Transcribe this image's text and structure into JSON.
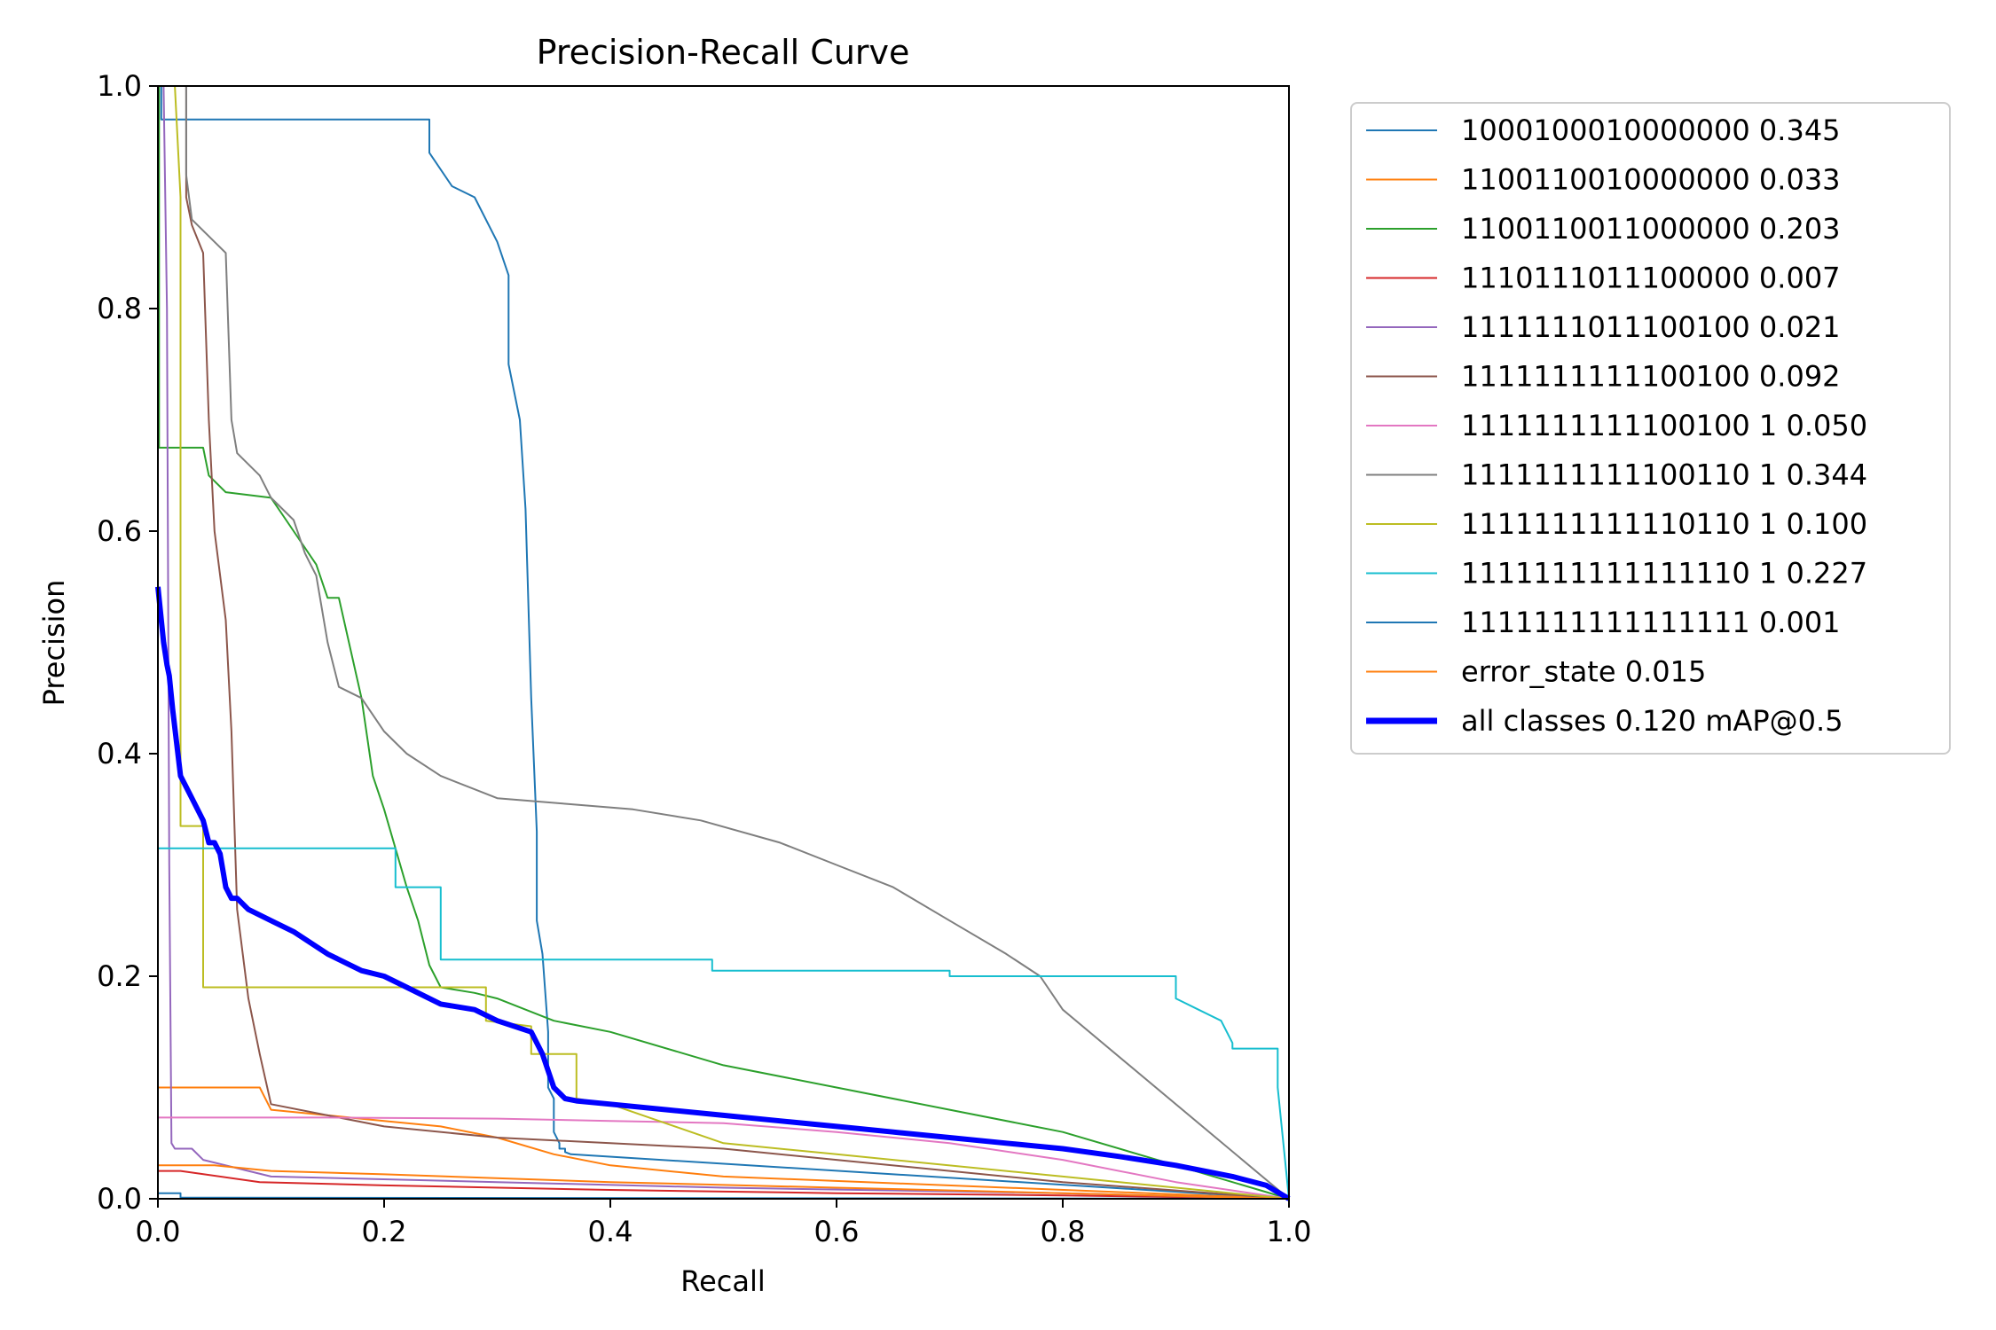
{
  "chart_data": {
    "type": "line",
    "title": "Precision-Recall Curve",
    "xlabel": "Recall",
    "ylabel": "Precision",
    "xlim": [
      0,
      1
    ],
    "ylim": [
      0,
      1
    ],
    "xticks": [
      0.0,
      0.2,
      0.4,
      0.6,
      0.8,
      1.0
    ],
    "yticks": [
      0.0,
      0.2,
      0.4,
      0.6,
      0.8,
      1.0
    ],
    "xtick_labels": [
      "0.0",
      "0.2",
      "0.4",
      "0.6",
      "0.8",
      "1.0"
    ],
    "ytick_labels": [
      "0.0",
      "0.2",
      "0.4",
      "0.6",
      "0.8",
      "1.0"
    ],
    "grid": false,
    "legend_position": "outside upper right",
    "series": [
      {
        "name": "1000100010000000",
        "ap": "0.345",
        "color": "#1f77b4",
        "width": 1,
        "x": [
          0,
          0.003,
          0.003,
          0.24,
          0.24,
          0.26,
          0.28,
          0.3,
          0.31,
          0.31,
          0.32,
          0.325,
          0.33,
          0.335,
          0.335,
          0.34,
          0.345,
          0.345,
          0.35,
          0.35,
          0.355,
          0.355,
          0.36,
          0.36,
          0.365,
          1.0
        ],
        "y": [
          1.0,
          1.0,
          0.97,
          0.97,
          0.94,
          0.91,
          0.9,
          0.86,
          0.83,
          0.75,
          0.7,
          0.62,
          0.45,
          0.33,
          0.25,
          0.22,
          0.15,
          0.1,
          0.09,
          0.06,
          0.05,
          0.045,
          0.045,
          0.042,
          0.04,
          0.0
        ]
      },
      {
        "name": "1100110010000000",
        "ap": "0.033",
        "color": "#ff7f0e",
        "width": 1,
        "x": [
          0,
          0.09,
          0.1,
          0.2,
          0.25,
          0.3,
          0.35,
          0.4,
          0.5,
          1.0
        ],
        "y": [
          0.1,
          0.1,
          0.08,
          0.07,
          0.065,
          0.055,
          0.04,
          0.03,
          0.02,
          0.0
        ]
      },
      {
        "name": "1100110011000000",
        "ap": "0.203",
        "color": "#2ca02c",
        "width": 1,
        "x": [
          0,
          0.001,
          0.001,
          0.04,
          0.045,
          0.06,
          0.1,
          0.12,
          0.14,
          0.15,
          0.16,
          0.18,
          0.19,
          0.2,
          0.22,
          0.23,
          0.24,
          0.25,
          0.28,
          0.3,
          0.35,
          0.4,
          0.5,
          0.6,
          0.7,
          0.8,
          0.9,
          1.0
        ],
        "y": [
          1.0,
          1.0,
          0.675,
          0.675,
          0.65,
          0.635,
          0.63,
          0.6,
          0.57,
          0.54,
          0.54,
          0.45,
          0.38,
          0.35,
          0.28,
          0.25,
          0.21,
          0.19,
          0.185,
          0.18,
          0.16,
          0.15,
          0.12,
          0.1,
          0.08,
          0.06,
          0.03,
          0.0
        ]
      },
      {
        "name": "1110111011100000",
        "ap": "0.007",
        "color": "#d62728",
        "width": 1,
        "x": [
          0,
          0.02,
          0.09,
          0.2,
          0.4,
          0.6,
          0.8,
          1.0
        ],
        "y": [
          0.025,
          0.025,
          0.015,
          0.012,
          0.008,
          0.005,
          0.003,
          0.0
        ]
      },
      {
        "name": "1111111011100100",
        "ap": "0.021",
        "color": "#9467bd",
        "width": 1,
        "x": [
          0,
          0.005,
          0.008,
          0.01,
          0.012,
          0.015,
          0.03,
          0.04,
          0.06,
          0.08,
          0.1,
          0.3,
          0.5,
          0.8,
          1.0
        ],
        "y": [
          1.0,
          1.0,
          0.8,
          0.3,
          0.05,
          0.045,
          0.045,
          0.035,
          0.03,
          0.025,
          0.02,
          0.015,
          0.01,
          0.005,
          0.0
        ]
      },
      {
        "name": "1111111111100100",
        "ap": "0.092",
        "color": "#8c564b",
        "width": 1,
        "x": [
          0,
          0.025,
          0.025,
          0.03,
          0.04,
          0.045,
          0.05,
          0.06,
          0.065,
          0.07,
          0.08,
          0.09,
          0.1,
          0.15,
          0.2,
          0.3,
          0.4,
          0.5,
          0.6,
          0.8,
          1.0
        ],
        "y": [
          1.0,
          1.0,
          0.9,
          0.875,
          0.85,
          0.7,
          0.6,
          0.52,
          0.42,
          0.26,
          0.18,
          0.13,
          0.085,
          0.075,
          0.065,
          0.055,
          0.05,
          0.045,
          0.035,
          0.015,
          0.0
        ]
      },
      {
        "name": "1111111111100100 1",
        "label": "1111111111100100 1",
        "ap": "0.050",
        "color": "#e377c2",
        "width": 1,
        "x": [
          0,
          0.15,
          0.3,
          0.4,
          0.5,
          0.6,
          0.7,
          0.8,
          0.9,
          1.0
        ],
        "y": [
          0.073,
          0.073,
          0.072,
          0.07,
          0.068,
          0.06,
          0.05,
          0.035,
          0.015,
          0.0
        ]
      },
      {
        "name": "1111111111100110 1",
        "label": "1111111111100110 1",
        "ap": "0.344",
        "color": "#7f7f7f",
        "width": 1,
        "x": [
          0,
          0.025,
          0.025,
          0.03,
          0.06,
          0.065,
          0.07,
          0.09,
          0.1,
          0.12,
          0.13,
          0.14,
          0.15,
          0.16,
          0.18,
          0.2,
          0.21,
          0.22,
          0.25,
          0.3,
          0.36,
          0.42,
          0.48,
          0.55,
          0.6,
          0.65,
          0.7,
          0.75,
          0.78,
          0.8,
          1.0
        ],
        "y": [
          1.0,
          1.0,
          0.92,
          0.88,
          0.85,
          0.7,
          0.67,
          0.65,
          0.63,
          0.61,
          0.58,
          0.56,
          0.5,
          0.46,
          0.45,
          0.42,
          0.41,
          0.4,
          0.38,
          0.36,
          0.355,
          0.35,
          0.34,
          0.32,
          0.3,
          0.28,
          0.25,
          0.22,
          0.2,
          0.17,
          0.0
        ]
      },
      {
        "name": "1111111111110110 1",
        "label": "1111111111110110 1",
        "ap": "0.100",
        "color": "#bcbd22",
        "width": 1,
        "x": [
          0,
          0.015,
          0.02,
          0.02,
          0.04,
          0.04,
          0.29,
          0.29,
          0.33,
          0.33,
          0.37,
          0.37,
          0.4,
          0.5,
          0.6,
          0.8,
          1.0
        ],
        "y": [
          1.0,
          1.0,
          0.9,
          0.335,
          0.335,
          0.19,
          0.19,
          0.16,
          0.155,
          0.13,
          0.13,
          0.09,
          0.085,
          0.05,
          0.04,
          0.02,
          0.0
        ]
      },
      {
        "name": "1111111111111110 1",
        "label": "1111111111111110 1",
        "ap": "0.227",
        "color": "#17becf",
        "width": 1,
        "x": [
          0,
          0.21,
          0.21,
          0.25,
          0.25,
          0.49,
          0.49,
          0.7,
          0.7,
          0.9,
          0.9,
          0.92,
          0.94,
          0.95,
          0.95,
          0.99,
          0.99,
          1.0
        ],
        "y": [
          0.315,
          0.315,
          0.28,
          0.28,
          0.215,
          0.215,
          0.205,
          0.205,
          0.2,
          0.2,
          0.18,
          0.17,
          0.16,
          0.14,
          0.135,
          0.135,
          0.1,
          0.0
        ]
      },
      {
        "name": "1111111111111111",
        "ap": "0.001",
        "color": "#1f77b4",
        "width": 1,
        "x": [
          0,
          0.02,
          0.02,
          1.0
        ],
        "y": [
          0.005,
          0.005,
          0.001,
          0.0
        ]
      },
      {
        "name": "error_state",
        "ap": "0.015",
        "color": "#ff7f0e",
        "width": 1,
        "x": [
          0,
          0.05,
          0.1,
          0.2,
          0.4,
          0.6,
          0.8,
          1.0
        ],
        "y": [
          0.03,
          0.03,
          0.025,
          0.022,
          0.015,
          0.01,
          0.005,
          0.0
        ]
      },
      {
        "name": "all classes",
        "ap": "0.120 mAP@0.5",
        "color": "#0000ff",
        "width": 3.5,
        "x": [
          0,
          0.005,
          0.008,
          0.01,
          0.013,
          0.02,
          0.025,
          0.03,
          0.04,
          0.045,
          0.05,
          0.055,
          0.06,
          0.065,
          0.07,
          0.08,
          0.1,
          0.12,
          0.15,
          0.18,
          0.2,
          0.22,
          0.25,
          0.28,
          0.3,
          0.33,
          0.34,
          0.35,
          0.36,
          0.37,
          0.4,
          0.45,
          0.5,
          0.55,
          0.6,
          0.65,
          0.7,
          0.75,
          0.8,
          0.85,
          0.9,
          0.95,
          0.98,
          1.0
        ],
        "y": [
          0.55,
          0.5,
          0.48,
          0.47,
          0.44,
          0.38,
          0.37,
          0.36,
          0.34,
          0.32,
          0.32,
          0.31,
          0.28,
          0.27,
          0.27,
          0.26,
          0.25,
          0.24,
          0.22,
          0.205,
          0.2,
          0.19,
          0.175,
          0.17,
          0.16,
          0.15,
          0.13,
          0.1,
          0.09,
          0.088,
          0.085,
          0.08,
          0.075,
          0.07,
          0.065,
          0.06,
          0.055,
          0.05,
          0.045,
          0.038,
          0.03,
          0.02,
          0.012,
          0.0
        ]
      }
    ]
  },
  "legend": {
    "items": [
      {
        "label": "1000100010000000 0.345",
        "color": "#1f77b4",
        "width": 1
      },
      {
        "label": "1100110010000000 0.033",
        "color": "#ff7f0e",
        "width": 1
      },
      {
        "label": "1100110011000000 0.203",
        "color": "#2ca02c",
        "width": 1
      },
      {
        "label": "1110111011100000 0.007",
        "color": "#d62728",
        "width": 1
      },
      {
        "label": "1111111011100100 0.021",
        "color": "#9467bd",
        "width": 1
      },
      {
        "label": "1111111111100100 0.092",
        "color": "#8c564b",
        "width": 1
      },
      {
        "label": "1111111111100100 1 0.050",
        "color": "#e377c2",
        "width": 1
      },
      {
        "label": "1111111111100110 1 0.344",
        "color": "#7f7f7f",
        "width": 1
      },
      {
        "label": "1111111111110110 1 0.100",
        "color": "#bcbd22",
        "width": 1
      },
      {
        "label": "1111111111111110 1 0.227",
        "color": "#17becf",
        "width": 1
      },
      {
        "label": "1111111111111111 0.001",
        "color": "#1f77b4",
        "width": 1
      },
      {
        "label": "error_state 0.015",
        "color": "#ff7f0e",
        "width": 1
      },
      {
        "label": "all classes 0.120 mAP@0.5",
        "color": "#0000ff",
        "width": 3.5
      }
    ]
  }
}
